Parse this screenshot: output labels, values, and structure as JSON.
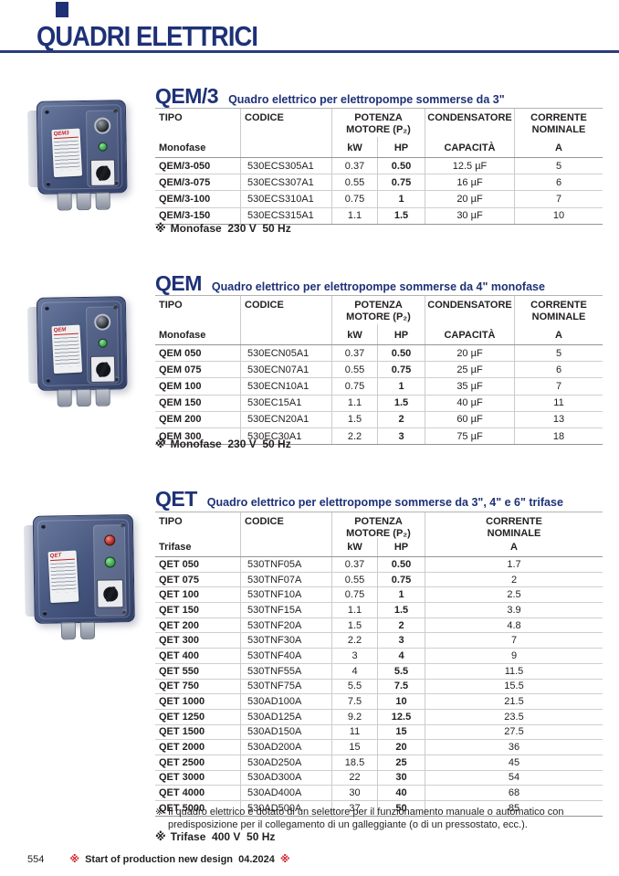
{
  "page": {
    "title": "QUADRI ELETTRICI",
    "page_number": "554",
    "ref_mark": "※",
    "footer_note": "Start of production new design  04.2024",
    "colors": {
      "navy": "#1e3177",
      "red": "#cd2027",
      "box_blue": "#47577f"
    }
  },
  "headers": {
    "tipo": "TIPO",
    "codice": "CODICE",
    "potenza": "POTENZA\nMOTORE (P₂)",
    "condensatore": "CONDENSATORE",
    "corrente": "CORRENTE\nNOMINALE",
    "monofase": "Monofase",
    "trifase": "Trifase",
    "kw": "kW",
    "hp": "HP",
    "capacita": "CAPACITÀ",
    "ampere": "A"
  },
  "sections": {
    "qem3": {
      "title": "QEM/3",
      "subtitle": "Quadro elettrico per elettropompe sommerse da 3\"",
      "product_label": "QEM3",
      "note": "Monofase  230 V  50 Hz",
      "rows": [
        [
          "QEM/3-050",
          "530ECS305A1",
          "0.37",
          "0.50",
          "12.5 µF",
          "5"
        ],
        [
          "QEM/3-075",
          "530ECS307A1",
          "0.55",
          "0.75",
          "16 µF",
          "6"
        ],
        [
          "QEM/3-100",
          "530ECS310A1",
          "0.75",
          "1",
          "20 µF",
          "7"
        ],
        [
          "QEM/3-150",
          "530ECS315A1",
          "1.1",
          "1.5",
          "30 µF",
          "10"
        ]
      ]
    },
    "qem": {
      "title": "QEM",
      "subtitle": "Quadro elettrico per elettropompe sommerse da 4\" monofase",
      "product_label": "QEM",
      "note": "Monofase  230 V  50 Hz",
      "rows": [
        [
          "QEM 050",
          "530ECN05A1",
          "0.37",
          "0.50",
          "20 µF",
          "5"
        ],
        [
          "QEM 075",
          "530ECN07A1",
          "0.55",
          "0.75",
          "25 µF",
          "6"
        ],
        [
          "QEM 100",
          "530ECN10A1",
          "0.75",
          "1",
          "35 µF",
          "7"
        ],
        [
          "QEM 150",
          "530EC15A1",
          "1.1",
          "1.5",
          "40 µF",
          "11"
        ],
        [
          "QEM 200",
          "530ECN20A1",
          "1.5",
          "2",
          "60 µF",
          "13"
        ],
        [
          "QEM 300",
          "530EC30A1",
          "2.2",
          "3",
          "75 µF",
          "18"
        ]
      ]
    },
    "qet": {
      "title": "QET",
      "subtitle": "Quadro elettrico per elettropompe sommerse da 3\", 4\" e 6\" trifase",
      "product_label": "QET",
      "note1": "Il quadro elettrico è dotato di un selettore per il funzionamento manuale o automatico con predisposizione per il collegamento di un galleggiante (o di un pressostato, ecc.).",
      "note2": "Trifase  400 V  50 Hz",
      "rows": [
        [
          "QET 050",
          "530TNF05A",
          "0.37",
          "0.50",
          "1.7"
        ],
        [
          "QET 075",
          "530TNF07A",
          "0.55",
          "0.75",
          "2"
        ],
        [
          "QET 100",
          "530TNF10A",
          "0.75",
          "1",
          "2.5"
        ],
        [
          "QET 150",
          "530TNF15A",
          "1.1",
          "1.5",
          "3.9"
        ],
        [
          "QET 200",
          "530TNF20A",
          "1.5",
          "2",
          "4.8"
        ],
        [
          "QET 300",
          "530TNF30A",
          "2.2",
          "3",
          "7"
        ],
        [
          "QET 400",
          "530TNF40A",
          "3",
          "4",
          "9"
        ],
        [
          "QET 550",
          "530TNF55A",
          "4",
          "5.5",
          "11.5"
        ],
        [
          "QET 750",
          "530TNF75A",
          "5.5",
          "7.5",
          "15.5"
        ],
        [
          "QET 1000",
          "530AD100A",
          "7.5",
          "10",
          "21.5"
        ],
        [
          "QET 1250",
          "530AD125A",
          "9.2",
          "12.5",
          "23.5"
        ],
        [
          "QET 1500",
          "530AD150A",
          "11",
          "15",
          "27.5"
        ],
        [
          "QET 2000",
          "530AD200A",
          "15",
          "20",
          "36"
        ],
        [
          "QET 2500",
          "530AD250A",
          "18.5",
          "25",
          "45"
        ],
        [
          "QET 3000",
          "530AD300A",
          "22",
          "30",
          "54"
        ],
        [
          "QET 4000",
          "530AD400A",
          "30",
          "40",
          "68"
        ],
        [
          "QET 5000",
          "530AD500A",
          "37",
          "50",
          "85"
        ]
      ]
    }
  }
}
